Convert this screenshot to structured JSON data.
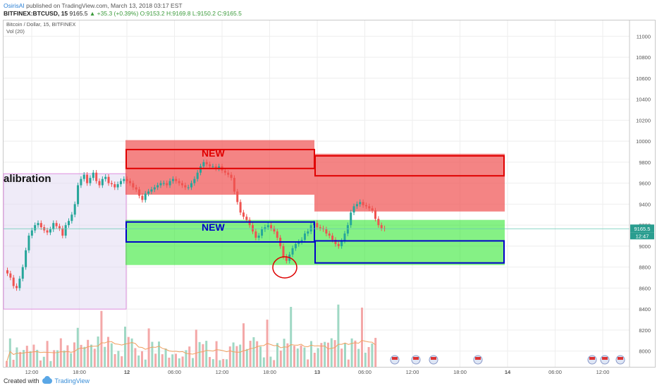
{
  "header": {
    "user": "OsirisAI",
    "published": "published on TradingView.com, March 13, 2018 03:17 EST",
    "symbol": "BITFINEX:BTCUSD, 15",
    "last": "9165.5",
    "change": "▲ +35.3 (+0.39%)",
    "ohlc": "O:9153.2 H:9169.8 L:9150.2 C:9165.5"
  },
  "legend": {
    "title": "Bitcoin / Dollar, 15, BITFINEX",
    "vol": "Vol (20)"
  },
  "annotations": {
    "calibration": "alibration",
    "new_red": "NEW",
    "new_blue": "NEW"
  },
  "price_tag": {
    "price": "9165.5",
    "countdown": "12:47"
  },
  "footer": {
    "created": "Created with",
    "brand": "TradingView"
  },
  "colors": {
    "up": "#26a69a",
    "down": "#ef5350",
    "red_zone": "#f05050",
    "green_zone": "#33e833",
    "calibration": "#e2daf2",
    "blue_box": "#0000c8",
    "red_box": "#e00000"
  },
  "chart_data": {
    "type": "candlestick",
    "title": "Bitcoin / Dollar, 15, BITFINEX",
    "ylim": [
      7850,
      11150
    ],
    "y_ticks": [
      8000,
      8200,
      8400,
      8600,
      8800,
      9000,
      9200,
      9400,
      9600,
      9800,
      10000,
      10200,
      10400,
      10600,
      10800,
      11000
    ],
    "x_ticks": [
      "12:00",
      "18:00",
      "12",
      "06:00",
      "12:00",
      "18:00",
      "13",
      "06:00",
      "12:00",
      "18:00",
      "14",
      "06:00",
      "12:00"
    ],
    "close_series": [
      8740,
      8700,
      8620,
      8600,
      8690,
      8800,
      8960,
      9100,
      9150,
      9200,
      9220,
      9180,
      9150,
      9130,
      9160,
      9220,
      9190,
      9170,
      9100,
      9200,
      9240,
      9300,
      9400,
      9580,
      9640,
      9680,
      9600,
      9650,
      9700,
      9620,
      9580,
      9640,
      9660,
      9600,
      9590,
      9560,
      9590,
      9620,
      9640,
      9620,
      9600,
      9560,
      9540,
      9480,
      9440,
      9500,
      9520,
      9540,
      9560,
      9580,
      9600,
      9600,
      9580,
      9620,
      9640,
      9620,
      9600,
      9580,
      9560,
      9560,
      9600,
      9640,
      9700,
      9760,
      9800,
      9780,
      9760,
      9760,
      9740,
      9760,
      9720,
      9700,
      9680,
      9650,
      9520,
      9420,
      9320,
      9280,
      9250,
      9200,
      9140,
      9080,
      9100,
      9160,
      9180,
      9200,
      9170,
      9140,
      9080,
      9000,
      8900,
      8860,
      8920,
      8980,
      9020,
      9040,
      9060,
      9120,
      9140,
      9200,
      9220,
      9180,
      9170,
      9160,
      9120,
      9100,
      9060,
      9020,
      9000,
      9050,
      9120,
      9200,
      9320,
      9380,
      9400,
      9420,
      9390,
      9380,
      9360,
      9340,
      9260,
      9200,
      9170,
      9165
    ]
  }
}
